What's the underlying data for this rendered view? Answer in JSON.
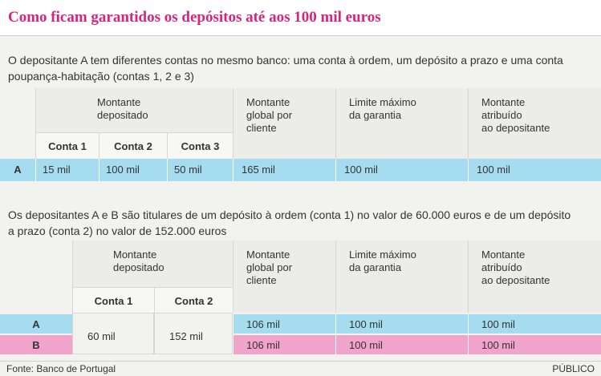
{
  "title": "Como ficam garantidos os depósitos até aos 100 mil euros",
  "example_1": {
    "description": [
      "O depositante A tem diferentes contas no mesmo banco: uma conta à ordem, um depósito a prazo e uma conta",
      "poupança-habitação (contas 1, 2 e 3)"
    ],
    "group_header": [
      "Montante",
      "depositado"
    ],
    "accounts": [
      "Conta 1",
      "Conta 2",
      "Conta 3"
    ],
    "headers": [
      [
        "Montante",
        "global por",
        "cliente"
      ],
      [
        "Limite máximo",
        "da garantia"
      ],
      [
        "Montante",
        "atribuído",
        "ao depositante"
      ]
    ],
    "rows": [
      {
        "label": "A",
        "deposits": [
          "15 mil",
          "100 mil",
          "50 mil"
        ],
        "values": [
          "165 mil",
          "100 mil",
          "100 mil"
        ]
      }
    ]
  },
  "example_2": {
    "description": [
      "Os depositantes A e B são titulares de um depósito à ordem (conta 1) no valor de 60.000 euros e de um depósito",
      "a prazo (conta 2) no valor de 152.000 euros"
    ],
    "group_header": [
      "Montante",
      "depositado"
    ],
    "accounts": [
      "Conta 1",
      "Conta 2"
    ],
    "headers": [
      [
        "Montante",
        "global por",
        "cliente"
      ],
      [
        "Limite máximo",
        "da garantia"
      ],
      [
        "Montante",
        "atribuído",
        "ao depositante"
      ]
    ],
    "deposits": [
      "60 mil",
      "152 mil"
    ],
    "rows": [
      {
        "label": "A",
        "values": [
          "106 mil",
          "100 mil",
          "100 mil"
        ]
      },
      {
        "label": "B",
        "values": [
          "106 mil",
          "100 mil",
          "100 mil"
        ]
      }
    ]
  },
  "footer": {
    "source": "Fonte: Banco de Portugal",
    "brand": "PÚBLICO"
  }
}
